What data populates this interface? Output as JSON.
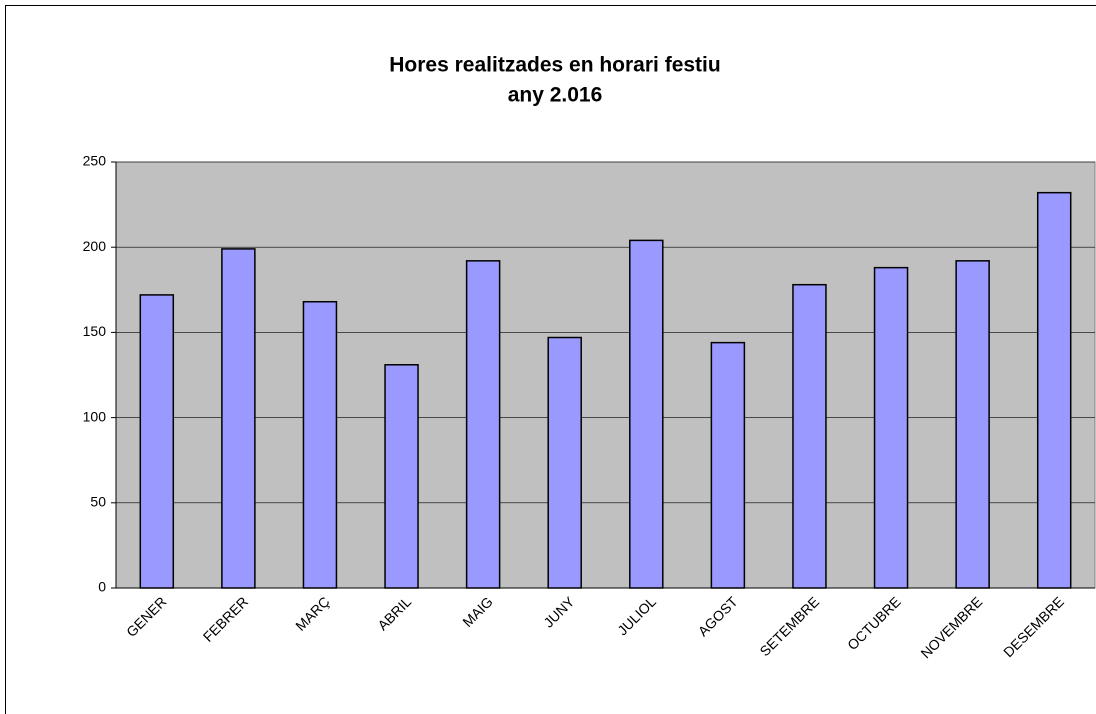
{
  "chart_data": {
    "type": "bar",
    "title": "Hores realitzades en horari festiu",
    "subtitle": "any 2.016",
    "categories": [
      "GENER",
      "FEBRER",
      "MARÇ",
      "ABRIL",
      "MAIG",
      "JUNY",
      "JULIOL",
      "AGOST",
      "SETEMBRE",
      "OCTUBRE",
      "NOVEMBRE",
      "DESEMBRE"
    ],
    "values": [
      172,
      199,
      168,
      131,
      192,
      147,
      204,
      144,
      178,
      188,
      192,
      232
    ],
    "color": "#9999ff",
    "ylim": [
      0,
      250
    ],
    "yticks": [
      0,
      50,
      100,
      150,
      200,
      250
    ],
    "grid": true
  }
}
